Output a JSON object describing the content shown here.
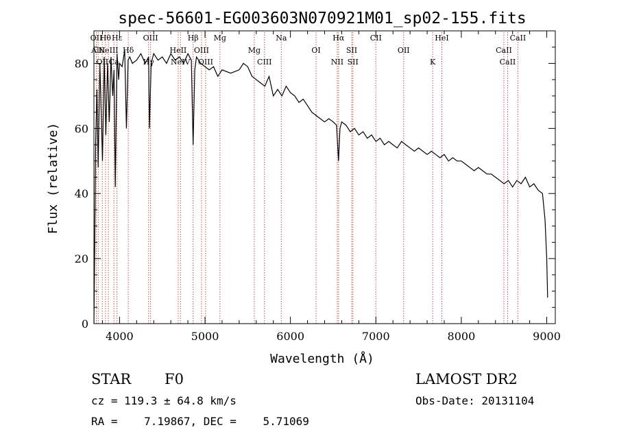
{
  "colors": {
    "spectrum": "#000000",
    "lines": "#c0504d",
    "text": "#000000"
  },
  "chart_data": {
    "type": "line",
    "title": "spec-56601-EG003603N070921M01_sp02-155.fits",
    "xlabel": "Wavelength (Å)",
    "ylabel": "Flux (relative)",
    "xlim": [
      3700,
      9100
    ],
    "ylim": [
      0,
      90
    ],
    "x_ticks": [
      4000,
      5000,
      6000,
      7000,
      8000,
      9000
    ],
    "y_ticks": [
      0,
      20,
      40,
      60,
      80
    ],
    "grid": false,
    "series": [
      {
        "x": [
          3700,
          3710,
          3720,
          3735,
          3750,
          3770,
          3800,
          3820,
          3840,
          3860,
          3880,
          3900,
          3920,
          3935,
          3950,
          3970,
          3990,
          4000,
          4030,
          4060,
          4080,
          4100,
          4120,
          4150,
          4200,
          4250,
          4300,
          4340,
          4350,
          4370,
          4400,
          4450,
          4500,
          4550,
          4600,
          4650,
          4700,
          4750,
          4800,
          4840,
          4861,
          4880,
          4900,
          4950,
          5000,
          5050,
          5100,
          5150,
          5200,
          5300,
          5400,
          5450,
          5500,
          5550,
          5600,
          5650,
          5700,
          5750,
          5800,
          5850,
          5900,
          5950,
          6000,
          6050,
          6100,
          6150,
          6200,
          6250,
          6300,
          6350,
          6400,
          6450,
          6500,
          6540,
          6563,
          6580,
          6600,
          6650,
          6700,
          6750,
          6800,
          6850,
          6900,
          6950,
          7000,
          7050,
          7100,
          7150,
          7200,
          7250,
          7300,
          7350,
          7400,
          7450,
          7500,
          7550,
          7600,
          7650,
          7700,
          7750,
          7800,
          7850,
          7900,
          7950,
          8000,
          8050,
          8100,
          8150,
          8200,
          8250,
          8300,
          8350,
          8400,
          8450,
          8500,
          8550,
          8600,
          8650,
          8700,
          8750,
          8800,
          8850,
          8900,
          8950,
          8980,
          9000,
          9010
        ],
        "values": [
          0,
          25,
          55,
          72,
          48,
          80,
          50,
          82,
          58,
          80,
          62,
          82,
          70,
          78,
          42,
          83,
          75,
          80,
          79,
          84,
          60,
          81,
          82,
          80,
          81,
          83,
          80,
          82,
          60,
          80,
          83,
          81,
          82,
          80,
          83,
          81,
          82,
          80,
          83,
          81,
          55,
          78,
          82,
          80,
          79,
          78,
          79,
          76,
          78,
          77,
          78,
          80,
          79,
          76,
          75,
          74,
          73,
          76,
          70,
          72,
          70,
          73,
          71,
          70,
          68,
          69,
          67,
          65,
          64,
          63,
          62,
          63,
          62,
          61,
          50,
          60,
          62,
          61,
          59,
          60,
          58,
          59,
          57,
          58,
          56,
          57,
          55,
          56,
          55,
          54,
          56,
          55,
          54,
          53,
          54,
          53,
          52,
          53,
          52,
          51,
          52,
          50,
          51,
          50,
          50,
          49,
          48,
          47,
          48,
          47,
          46,
          46,
          45,
          44,
          43,
          44,
          42,
          44,
          43,
          45,
          42,
          43,
          41,
          40,
          32,
          20,
          8
        ]
      }
    ],
    "lines": [
      {
        "wl": 3728,
        "label": "OII"
      },
      {
        "wl": 3750,
        "label": "AlII"
      },
      {
        "wl": 3798,
        "label": "OII"
      },
      {
        "wl": 3835,
        "label": "Hθ"
      },
      {
        "wl": 3869,
        "label": "NeIII"
      },
      {
        "wl": 3934,
        "label": "Ca"
      },
      {
        "wl": 3970,
        "label": "Hε"
      },
      {
        "wl": 4102,
        "label": "Hδ"
      },
      {
        "wl": 4340,
        "label": "Hγ"
      },
      {
        "wl": 4363,
        "label": "OIII"
      },
      {
        "wl": 4686,
        "label": "HeII"
      },
      {
        "wl": 4713,
        "label": "NeIV"
      },
      {
        "wl": 4861,
        "label": "Hβ"
      },
      {
        "wl": 4959,
        "label": "OIII"
      },
      {
        "wl": 5007,
        "label": "OIII"
      },
      {
        "wl": 5175,
        "label": "Mg"
      },
      {
        "wl": 5577,
        "label": "Mg"
      },
      {
        "wl": 5696,
        "label": "CIII"
      },
      {
        "wl": 5893,
        "label": "Na"
      },
      {
        "wl": 6300,
        "label": "OI"
      },
      {
        "wl": 6548,
        "label": "NII"
      },
      {
        "wl": 6563,
        "label": "Hα"
      },
      {
        "wl": 6717,
        "label": "SII"
      },
      {
        "wl": 6731,
        "label": "SII"
      },
      {
        "wl": 7000,
        "label": "CII"
      },
      {
        "wl": 7325,
        "label": "OII"
      },
      {
        "wl": 7665,
        "label": "K"
      },
      {
        "wl": 7772,
        "label": "HeI"
      },
      {
        "wl": 8498,
        "label": "CaII"
      },
      {
        "wl": 8542,
        "label": "CaII"
      },
      {
        "wl": 8662,
        "label": "CaII"
      }
    ]
  },
  "info": {
    "object_type": "STAR",
    "subclass": "F0",
    "survey": "LAMOST DR2",
    "cz": "cz = 119.3 ± 64.8 km/s",
    "obs_date": "Obs-Date: 20131104",
    "coords": "RA =    7.19867, DEC =    5.71069"
  }
}
